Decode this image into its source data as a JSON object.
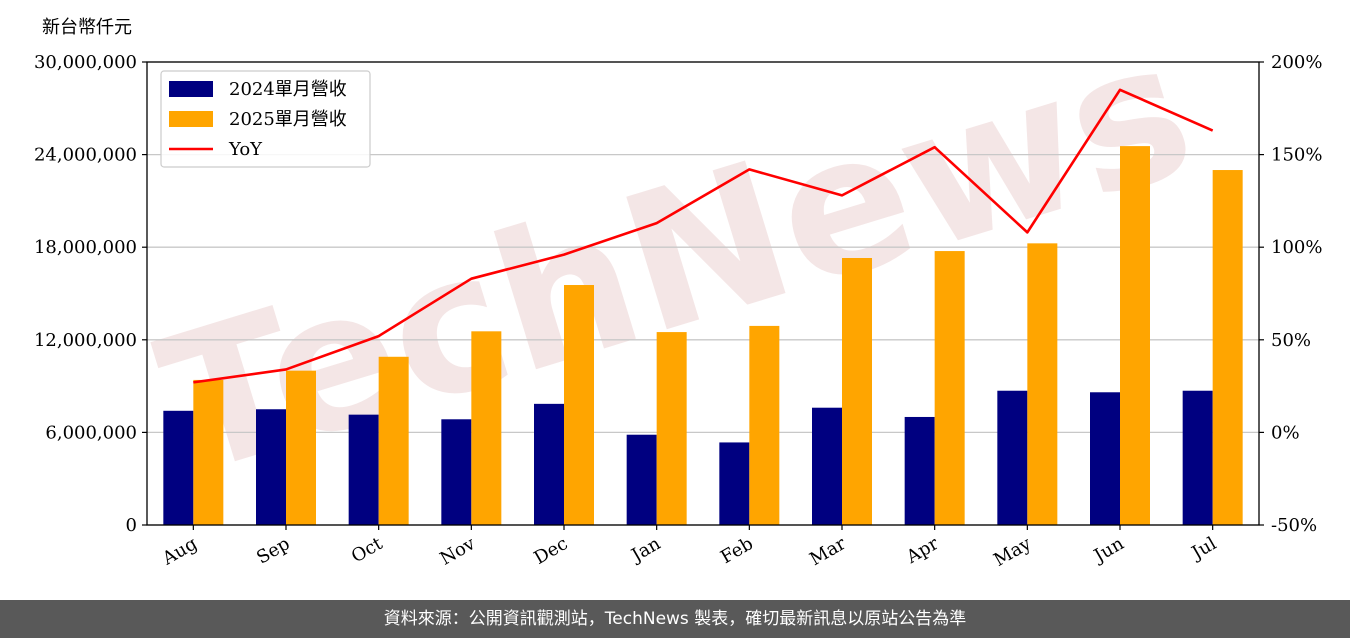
{
  "unit_label": "新台幣仟元",
  "watermark_text": "TechNews",
  "footer_text": "資料來源：公開資訊觀測站，TechNews 製表，確切最新訊息以原站公告為準",
  "colors": {
    "series_2024": "#000080",
    "series_2025": "#ffa500",
    "yoy": "#ff0000",
    "footer_bg": "#595959"
  },
  "chart_data": {
    "type": "bar",
    "categories": [
      "Aug",
      "Sep",
      "Oct",
      "Nov",
      "Dec",
      "Jan",
      "Feb",
      "Mar",
      "Apr",
      "May",
      "Jun",
      "Jul"
    ],
    "series": [
      {
        "name": "2024單月營收",
        "type": "bar",
        "axis": "left",
        "values": [
          7400000,
          7500000,
          7150000,
          6850000,
          7850000,
          5850000,
          5350000,
          7600000,
          7000000,
          8700000,
          8600000,
          8700000
        ]
      },
      {
        "name": "2025單月營收",
        "type": "bar",
        "axis": "left",
        "values": [
          9400000,
          10000000,
          10900000,
          12550000,
          15550000,
          12500000,
          12900000,
          17300000,
          17750000,
          18250000,
          24550000,
          23000000
        ]
      },
      {
        "name": "YoY",
        "type": "line",
        "axis": "right",
        "values": [
          27,
          34,
          52,
          83,
          96,
          113,
          142,
          128,
          154,
          108,
          185,
          163
        ]
      }
    ],
    "ylim_left": [
      0,
      30000000
    ],
    "yticks_left": [
      0,
      6000000,
      12000000,
      18000000,
      24000000,
      30000000
    ],
    "ytick_labels_left": [
      "0",
      "6,000,000",
      "12,000,000",
      "18,000,000",
      "24,000,000",
      "30,000,000"
    ],
    "ylim_right": [
      -50,
      200
    ],
    "yticks_right": [
      -50,
      0,
      50,
      100,
      150,
      200
    ],
    "ytick_labels_right": [
      "-50%",
      "0%",
      "50%",
      "100%",
      "150%",
      "200%"
    ],
    "grid": true,
    "legend_position": "top-left",
    "xlabel": "",
    "ylabel": ""
  }
}
